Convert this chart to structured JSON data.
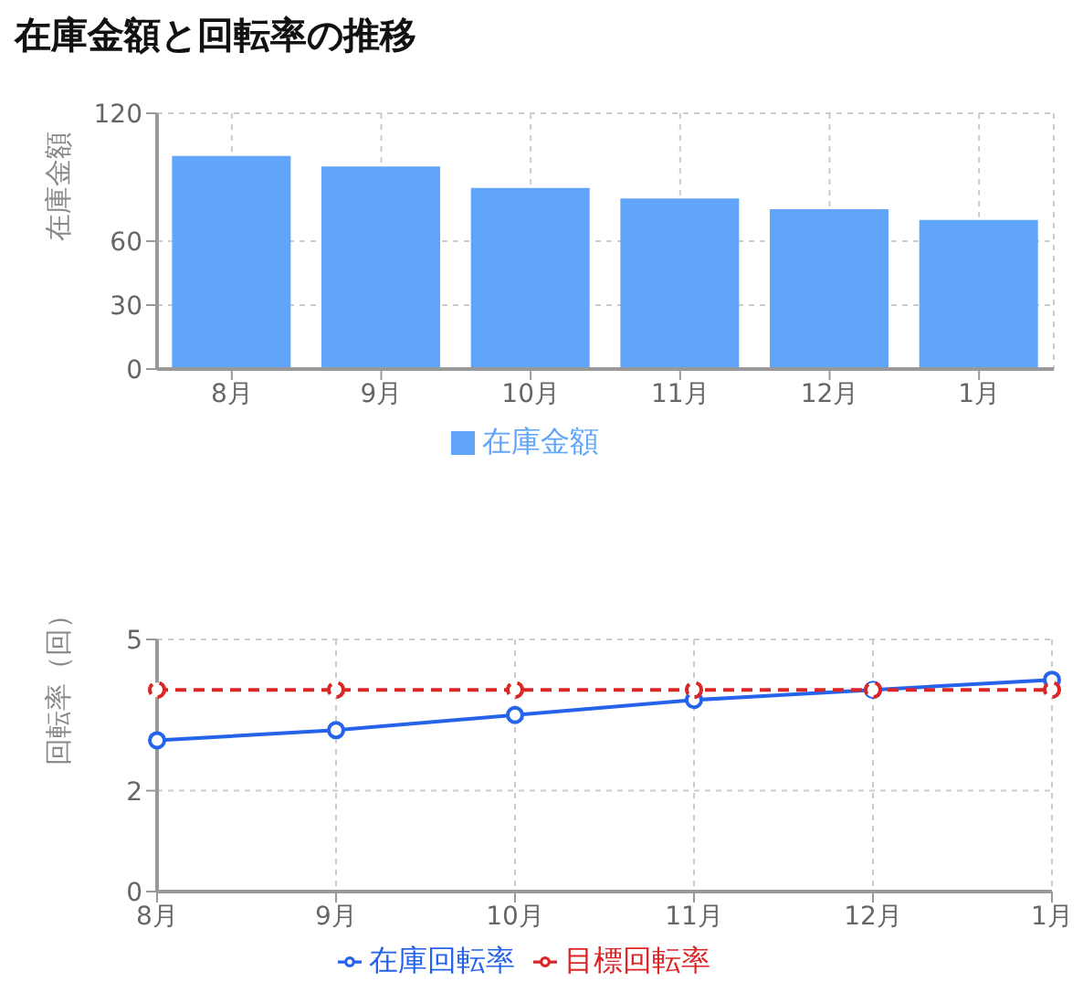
{
  "chart_data": [
    {
      "type": "bar",
      "title": "在庫金額と回転率の推移",
      "ylabel": "在庫金額",
      "categories": [
        "8月",
        "9月",
        "10月",
        "11月",
        "12月",
        "1月"
      ],
      "series": [
        {
          "name": "在庫金額",
          "color": "#60a5fa",
          "values": [
            100,
            95,
            85,
            80,
            75,
            70
          ]
        }
      ],
      "ylim": [
        0,
        120
      ],
      "yticks": [
        0,
        30,
        60,
        120
      ],
      "grid": true,
      "legend": "bottom"
    },
    {
      "type": "line",
      "ylabel": "回転率（回）",
      "categories": [
        "8月",
        "9月",
        "10月",
        "11月",
        "12月",
        "1月"
      ],
      "series": [
        {
          "name": "在庫回転率",
          "color": "#2563eb",
          "values": [
            3.0,
            3.2,
            3.5,
            3.8,
            4.0,
            4.2
          ]
        },
        {
          "name": "目標回転率",
          "color": "#dc2626",
          "values": [
            4,
            4,
            4,
            4,
            4,
            4
          ],
          "line_style": "dashed"
        }
      ],
      "ylim": [
        0,
        5
      ],
      "yticks": [
        0,
        2,
        5
      ],
      "grid": true,
      "legend": "bottom",
      "marker": "circle"
    }
  ]
}
